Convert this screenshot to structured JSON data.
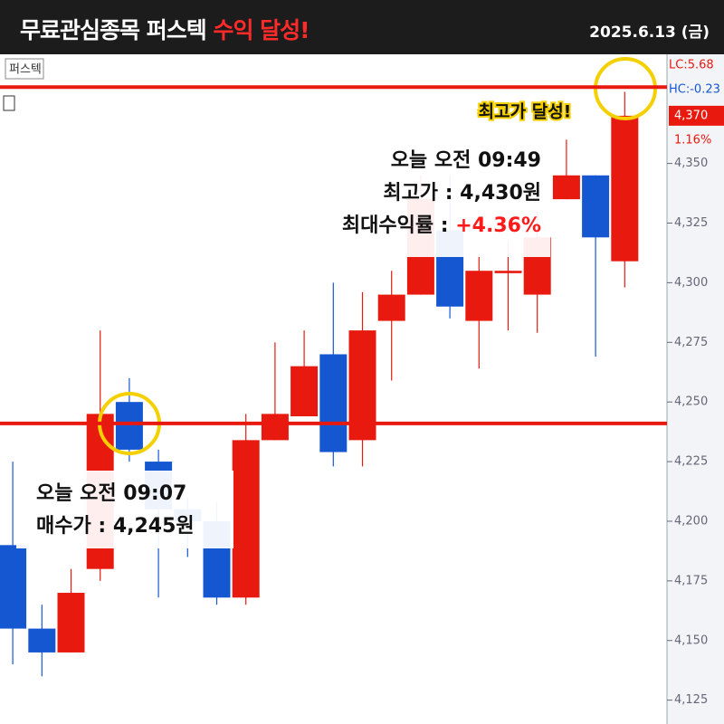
{
  "header": {
    "title_main": "무료관심종목 퍼스텍",
    "title_highlight": "수익 달성!",
    "date": "2025.6.13 (금)"
  },
  "chart_data": {
    "type": "candlestick",
    "name": "퍼스텍",
    "up_color": "#e8190f",
    "down_color": "#1557d0",
    "open": [
      4190,
      4155,
      4145,
      4180,
      4250,
      4225,
      4205,
      4200,
      4168,
      4234,
      4244,
      4270,
      4234,
      4284,
      4295,
      4322,
      4284,
      4304,
      4295,
      4335,
      4345,
      4309
    ],
    "high": [
      4225,
      4165,
      4180,
      4280,
      4260,
      4230,
      4210,
      4208,
      4245,
      4275,
      4280,
      4300,
      4296,
      4305,
      4345,
      4345,
      4312,
      4317,
      4330,
      4360,
      4345,
      4380
    ],
    "low": [
      4140,
      4135,
      4145,
      4175,
      4225,
      4168,
      4185,
      4165,
      4165,
      4234,
      4244,
      4223,
      4223,
      4259,
      4295,
      4285,
      4264,
      4280,
      4279,
      4335,
      4269,
      4298
    ],
    "close": [
      4155,
      4145,
      4170,
      4245,
      4230,
      4205,
      4200,
      4168,
      4234,
      4245,
      4265,
      4229,
      4280,
      4295,
      4335,
      4290,
      4305,
      4305,
      4319,
      4345,
      4319,
      4370
    ],
    "ylim": [
      4115,
      4395
    ],
    "yticks": [
      {
        "value": 4125,
        "label": "4,125"
      },
      {
        "value": 4150,
        "label": "4,150"
      },
      {
        "value": 4175,
        "label": "4,175"
      },
      {
        "value": 4200,
        "label": "4,200"
      },
      {
        "value": 4225,
        "label": "4,225"
      },
      {
        "value": 4250,
        "label": "4,250"
      },
      {
        "value": 4275,
        "label": "4,275"
      },
      {
        "value": 4300,
        "label": "4,300"
      },
      {
        "value": 4325,
        "label": "4,325"
      },
      {
        "value": 4350,
        "label": "4,350"
      }
    ],
    "reference_lines": [
      4241,
      4382
    ],
    "reference_color": "#e8190f",
    "lc": "LC:5.68",
    "hc": "HC:-0.23",
    "last_price": {
      "value": 4370,
      "label": "4,370"
    },
    "change": "1.16%",
    "annotations": {
      "high": {
        "time": "오늘 오전 09:49",
        "price": "최고가 : 4,430원",
        "return_label": "최대수익률 :",
        "return_value": "+4.36%"
      },
      "buy": {
        "time": "오늘 오전 09:07",
        "price": "매수가 : 4,245원"
      },
      "badge": "최고가 달성!"
    }
  }
}
